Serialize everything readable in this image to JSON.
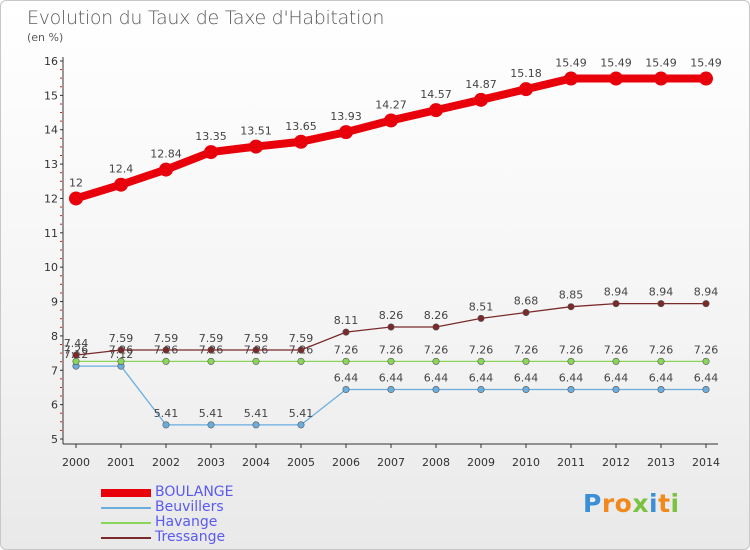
{
  "title": "Evolution du Taux de Taxe d'Habitation",
  "unit_label": "(en %)",
  "brand": {
    "letters": [
      "P",
      "r",
      "o",
      "x",
      "i",
      "t",
      "i"
    ],
    "colors": [
      "#3a8fd6",
      "#f08a1c",
      "#f08a1c",
      "#7cc242",
      "#3a8fd6",
      "#f08a1c",
      "#7cc242"
    ]
  },
  "chart_data": {
    "type": "line",
    "title": "Evolution du Taux de Taxe d'Habitation",
    "ylabel": "(en %)",
    "xlabel": "",
    "x": [
      2000,
      2001,
      2002,
      2003,
      2004,
      2005,
      2006,
      2007,
      2008,
      2009,
      2010,
      2011,
      2012,
      2013,
      2014
    ],
    "x_labels": [
      "2000",
      "2001",
      "2002",
      "2003",
      "2004",
      "2005",
      "2006",
      "2007",
      "2008",
      "2009",
      "2010",
      "2011",
      "2012",
      "2013",
      "2014"
    ],
    "ylim": [
      5,
      16
    ],
    "y_ticks": [
      "5",
      "6",
      "7",
      "8",
      "9",
      "10",
      "11",
      "12",
      "13",
      "14",
      "15",
      "16"
    ],
    "grid": false,
    "legend_position": "bottom-left",
    "series": [
      {
        "name": "BOULANGE",
        "color": "#e8000b",
        "emphasis": true,
        "values": [
          12,
          12.4,
          12.84,
          13.35,
          13.51,
          13.65,
          13.93,
          14.27,
          14.57,
          14.87,
          15.18,
          15.49,
          15.49,
          15.49,
          15.49
        ],
        "labels": [
          "12",
          "12.4",
          "12.84",
          "13.35",
          "13.51",
          "13.65",
          "13.93",
          "14.27",
          "14.57",
          "14.87",
          "15.18",
          "15.49",
          "15.49",
          "15.49",
          "15.49"
        ]
      },
      {
        "name": "Beuvillers",
        "color": "#6aaee0",
        "values": [
          7.12,
          7.12,
          5.41,
          5.41,
          5.41,
          5.41,
          6.44,
          6.44,
          6.44,
          6.44,
          6.44,
          6.44,
          6.44,
          6.44,
          6.44
        ],
        "labels": [
          "7.12",
          "7.12",
          "5.41",
          "5.41",
          "5.41",
          "5.41",
          "6.44",
          "6.44",
          "6.44",
          "6.44",
          "6.44",
          "6.44",
          "6.44",
          "6.44",
          "6.44"
        ]
      },
      {
        "name": "Havange",
        "color": "#8ad65a",
        "values": [
          7.26,
          7.26,
          7.26,
          7.26,
          7.26,
          7.26,
          7.26,
          7.26,
          7.26,
          7.26,
          7.26,
          7.26,
          7.26,
          7.26,
          7.26
        ],
        "labels": [
          "7.26",
          "7.26",
          "7.26",
          "7.26",
          "7.26",
          "7.26",
          "7.26",
          "7.26",
          "7.26",
          "7.26",
          "7.26",
          "7.26",
          "7.26",
          "7.26",
          "7.26"
        ]
      },
      {
        "name": "Tressange",
        "color": "#7a2a2a",
        "values": [
          7.44,
          7.59,
          7.59,
          7.59,
          7.59,
          7.59,
          8.11,
          8.26,
          8.26,
          8.51,
          8.68,
          8.85,
          8.94,
          8.94,
          8.94
        ],
        "labels": [
          "7.44",
          "7.59",
          "7.59",
          "7.59",
          "7.59",
          "7.59",
          "8.11",
          "8.26",
          "8.26",
          "8.51",
          "8.68",
          "8.85",
          "8.94",
          "8.94",
          "8.94"
        ]
      }
    ]
  }
}
